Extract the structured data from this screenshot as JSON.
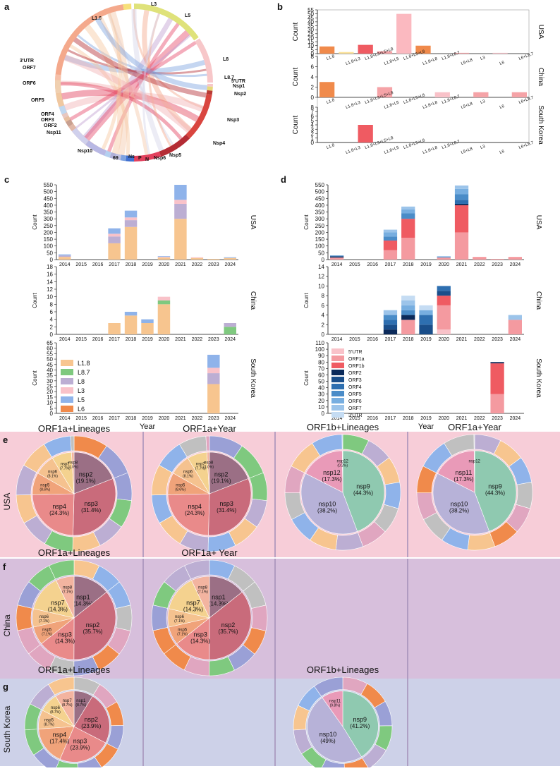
{
  "panels": {
    "a": "a",
    "b": "b",
    "c": "c",
    "d": "d",
    "e": "e",
    "f": "f",
    "g": "g"
  },
  "colors": {
    "L1.8": "#f7c58f",
    "L8.7": "#7fc97f",
    "L8": "#bcaed3",
    "L3": "#f9c2c9",
    "L5": "#8fb3ea",
    "L6": "#f08a4b",
    "bar_b": [
      "#f08a4b",
      "#fde49b",
      "#ef5b62",
      "#f5a3a7",
      "#fbb9c0",
      "#f08a4b",
      "#f9c2c9",
      "#f5a3a7",
      "#f5a3a7",
      "#f9c2c9",
      "#f5a3a7"
    ],
    "pink_bg": "#f7cdd8",
    "purple_bg": "#d7bfdc",
    "blue_bg": "#cdd1e8"
  },
  "chart_data": [
    {
      "panel": "a",
      "type": "chord",
      "segments": [
        "L1.8",
        "L3",
        "L5",
        "L8",
        "L8.7",
        "5'UTR",
        "Nsp1",
        "Nsp2",
        "Nsp3",
        "Nsp4",
        "Nsp5",
        "Nsp6",
        "N",
        "P",
        "Ns",
        "69",
        "Nsp10",
        "Nsp11",
        "ORF2",
        "ORF3",
        "ORF4",
        "ORF5",
        "ORF6",
        "ORF7",
        "3'UTR"
      ]
    },
    {
      "panel": "b",
      "type": "bar",
      "countries": [
        "USA",
        "China",
        "South Korea"
      ],
      "ylabel": "Count",
      "categories": [
        "L1.8",
        "L1.8+L3",
        "L1.8+L3+L5+L8",
        "L1.8+L5",
        "L1.8+L5+L8",
        "L1.8+L8",
        "L1.8+L8.7",
        "L5+L8",
        "L3",
        "L6",
        "L6+L8.7"
      ],
      "series": [
        {
          "name": "USA",
          "values": [
            9,
            2,
            11,
            3,
            50,
            10,
            0,
            1,
            0,
            1,
            0
          ],
          "ylim": [
            0,
            55
          ],
          "ticks": [
            0,
            5,
            10,
            15,
            20,
            25,
            30,
            35,
            40,
            45,
            50,
            55
          ]
        },
        {
          "name": "China",
          "values": [
            3,
            0,
            0,
            2,
            0,
            0,
            1,
            0,
            1,
            0,
            1
          ],
          "ylim": [
            0,
            8
          ],
          "ticks": [
            0,
            2,
            4,
            6,
            8
          ]
        },
        {
          "name": "South Korea",
          "values": [
            0,
            0,
            4,
            0,
            0,
            0,
            0,
            0,
            0,
            0,
            0
          ],
          "ylim": [
            0,
            8
          ],
          "ticks": [
            0,
            1,
            2,
            3,
            4,
            5,
            6,
            7,
            8
          ]
        }
      ]
    },
    {
      "panel": "c",
      "type": "bar",
      "stacked": true,
      "xlabel": "Year",
      "ylabel": "Count",
      "years": [
        "2014",
        "2015",
        "2016",
        "2017",
        "2018",
        "2019",
        "2020",
        "2021",
        "2022",
        "2023",
        "2024"
      ],
      "legend": [
        "L1.8",
        "L8.7",
        "L8",
        "L3",
        "L5",
        "L6"
      ],
      "rows": [
        {
          "country": "USA",
          "ylim": [
            0,
            550
          ],
          "ticks": [
            0,
            50,
            100,
            150,
            200,
            250,
            300,
            350,
            400,
            450,
            500,
            550
          ],
          "stacks": [
            {
              "L1.8": 20,
              "L8": 10,
              "L5": 8
            },
            {},
            {},
            {
              "L1.8": 120,
              "L8": 50,
              "L3": 20,
              "L5": 40
            },
            {
              "L1.8": 240,
              "L8": 50,
              "L3": 20,
              "L5": 50
            },
            {},
            {
              "L1.8": 15,
              "L3": 5,
              "L5": 5
            },
            {
              "L1.8": 300,
              "L8": 110,
              "L3": 30,
              "L5": 110
            },
            {
              "L1.8": 12,
              "L3": 5
            },
            {
              "L1.8": 5
            },
            {
              "L1.8": 12,
              "L5": 5
            }
          ]
        },
        {
          "country": "China",
          "ylim": [
            0,
            18
          ],
          "ticks": [
            0,
            2,
            4,
            6,
            8,
            10,
            12,
            14,
            16,
            18
          ],
          "stacks": [
            {},
            {},
            {},
            {
              "L1.8": 3
            },
            {
              "L1.8": 5,
              "L5": 1
            },
            {
              "L1.8": 3,
              "L5": 1
            },
            {
              "L1.8": 8,
              "L8.7": 1,
              "L3": 1
            },
            {},
            {},
            {},
            {
              "L8.7": 2,
              "L8": 1
            }
          ]
        },
        {
          "country": "South Korea",
          "ylim": [
            0,
            65
          ],
          "ticks": [
            0,
            5,
            10,
            15,
            20,
            25,
            30,
            35,
            40,
            45,
            50,
            55,
            60,
            65
          ],
          "stacks": [
            {},
            {},
            {},
            {},
            {},
            {},
            {},
            {},
            {},
            {
              "L1.8": 27,
              "L8": 10,
              "L3": 5,
              "L5": 12
            },
            {}
          ]
        }
      ]
    },
    {
      "panel": "d",
      "type": "bar",
      "stacked": true,
      "xlabel": "Year",
      "ylabel": "Count",
      "years": [
        "2014",
        "2015",
        "2016",
        "2017",
        "2018",
        "2019",
        "2020",
        "2021",
        "2022",
        "2023",
        "2024"
      ],
      "legend": [
        "5'UTR",
        "ORF1a",
        "ORF1b",
        "ORF2",
        "ORF3",
        "ORF4",
        "ORF5",
        "ORF6",
        "ORF7",
        "3'UTR"
      ],
      "rows": [
        {
          "country": "USA",
          "ylim": [
            0,
            550
          ],
          "ticks": [
            0,
            50,
            100,
            150,
            200,
            250,
            300,
            350,
            400,
            450,
            500,
            550
          ],
          "stacks": [
            {
              "ORF1a": 15,
              "ORF2": 8,
              "ORF5": 7
            },
            {},
            {},
            {
              "ORF1a": 70,
              "ORF1b": 70,
              "ORF5": 30,
              "ORF6": 30,
              "ORF7": 20
            },
            {
              "ORF1a": 160,
              "ORF1b": 140,
              "ORF5": 40,
              "ORF6": 30,
              "ORF7": 20
            },
            {},
            {
              "ORF1a": 15,
              "ORF5": 5,
              "ORF7": 5
            },
            {
              "ORF1a": 200,
              "ORF1b": 200,
              "ORF2": 10,
              "ORF4": 30,
              "ORF5": 40,
              "ORF6": 40,
              "ORF7": 25
            },
            {
              "ORF1a": 12,
              "ORF1b": 5
            },
            {
              "ORF1a": 5
            },
            {
              "ORF1a": 12,
              "ORF1b": 5
            }
          ]
        },
        {
          "country": "China",
          "ylim": [
            0,
            14
          ],
          "ticks": [
            0,
            2,
            4,
            6,
            8,
            10,
            12,
            14
          ],
          "stacks": [
            {},
            {},
            {},
            {
              "ORF2": 1,
              "ORF3": 1,
              "ORF4": 1,
              "ORF5": 1,
              "ORF7": 1
            },
            {
              "ORF1a": 3,
              "ORF2": 1,
              "ORF5": 1,
              "ORF6": 1,
              "ORF7": 1,
              "3'UTR": 1
            },
            {
              "ORF3": 2,
              "ORF4": 2,
              "ORF6": 1,
              "3'UTR": 1
            },
            {
              "5'UTR": 1,
              "ORF1a": 5,
              "ORF1b": 2,
              "ORF3": 1,
              "ORF4": 1
            },
            {},
            {},
            {},
            {
              "ORF1a": 3,
              "ORF7": 1
            }
          ]
        },
        {
          "country": "South Korea",
          "ylim": [
            0,
            110
          ],
          "ticks": [
            0,
            10,
            20,
            30,
            40,
            50,
            60,
            70,
            80,
            90,
            100,
            110
          ],
          "stacks": [
            {},
            {},
            {},
            {},
            {},
            {},
            {},
            {},
            {},
            {
              "ORF1a": 30,
              "ORF1b": 48,
              "ORF2": 2
            },
            {}
          ]
        }
      ]
    },
    {
      "panel": "e-g",
      "type": "pie",
      "rows": [
        "USA",
        "China",
        "South Korea"
      ],
      "charts": [
        {
          "country": "USA",
          "title": "ORF1a+Lineages",
          "slices": [
            {
              "label": "nsp2",
              "pct": "19.1%",
              "v": 19.1
            },
            {
              "label": "nsp3",
              "pct": "31.4%",
              "v": 31.4
            },
            {
              "label": "nsp4",
              "pct": "24.3%",
              "v": 24.3
            },
            {
              "label": "nsp5",
              "pct": "8.6%",
              "v": 8.6
            },
            {
              "label": "nsp6",
              "pct": "8.1%",
              "v": 8.1
            },
            {
              "label": "nsp7",
              "pct": "7.7%",
              "v": 7.7
            },
            {
              "label": "nsp8",
              "pct": "1.0%",
              "v": 1.0
            }
          ]
        },
        {
          "country": "USA",
          "title": "ORF1a+Year",
          "slices": [
            {
              "label": "nsp2",
              "pct": "19.1%",
              "v": 19.1
            },
            {
              "label": "nsp3",
              "pct": "31.4%",
              "v": 31.4
            },
            {
              "label": "nsp4",
              "pct": "24.3%",
              "v": 24.3
            },
            {
              "label": "nsp5",
              "pct": "8.6%",
              "v": 8.6
            },
            {
              "label": "nsp6",
              "pct": "8.1%",
              "v": 8.1
            },
            {
              "label": "nsp7",
              "pct": "7.7%",
              "v": 7.7
            },
            {
              "label": "nsp8",
              "pct": "1.0%",
              "v": 1.0
            }
          ]
        },
        {
          "country": "USA",
          "title": "ORF1b+Lineages",
          "slices": [
            {
              "label": "nsp9",
              "pct": "44.3%",
              "v": 44.3
            },
            {
              "label": "nsp10",
              "pct": "38.2%",
              "v": 38.2
            },
            {
              "label": "nsp12",
              "pct": "17.3%",
              "v": 17.3
            },
            {
              "label": "nsp12",
              "pct": "0.2%",
              "v": 0.2
            }
          ]
        },
        {
          "country": "USA",
          "title": "ORF1a+Year",
          "slices": [
            {
              "label": "nsp9",
              "pct": "44.3%",
              "v": 44.3
            },
            {
              "label": "nsp10",
              "pct": "38.2%",
              "v": 38.2
            },
            {
              "label": "nsp11",
              "pct": "17.3%",
              "v": 17.3
            },
            {
              "label": "nsp12",
              "pct": "",
              "v": 0.2
            }
          ]
        },
        {
          "country": "China",
          "title": "ORF1a+Lineages",
          "slices": [
            {
              "label": "nsp1",
              "pct": "14.3%",
              "v": 14.3
            },
            {
              "label": "nsp2",
              "pct": "35.7%",
              "v": 35.7
            },
            {
              "label": "nsp3",
              "pct": "14.3%",
              "v": 14.3
            },
            {
              "label": "nsp5",
              "pct": "7.1%",
              "v": 7.1
            },
            {
              "label": "nsp6",
              "pct": "7.1%",
              "v": 7.1
            },
            {
              "label": "nsp7",
              "pct": "14.3%",
              "v": 14.3
            },
            {
              "label": "nsp8",
              "pct": "7.1%",
              "v": 7.1
            }
          ]
        },
        {
          "country": "China",
          "title": "ORF1a+ Year",
          "slices": [
            {
              "label": "nsp1",
              "pct": "14.3%",
              "v": 14.3
            },
            {
              "label": "nsp2",
              "pct": "35.7%",
              "v": 35.7
            },
            {
              "label": "nsp3",
              "pct": "14.3%",
              "v": 14.3
            },
            {
              "label": "nsp5",
              "pct": "7.1%",
              "v": 7.1
            },
            {
              "label": "nsp6",
              "pct": "7.1%",
              "v": 7.1
            },
            {
              "label": "nsp7",
              "pct": "14.3%",
              "v": 14.3
            },
            {
              "label": "nsp8",
              "pct": "7.1%",
              "v": 7.1
            }
          ]
        },
        {
          "country": "South Korea",
          "title": "ORF1a+Lineages",
          "slices": [
            {
              "label": "nsp1",
              "pct": "8.7%",
              "v": 8.7
            },
            {
              "label": "nsp2",
              "pct": "23.9%",
              "v": 23.9
            },
            {
              "label": "nsp3",
              "pct": "23.9%",
              "v": 23.9
            },
            {
              "label": "nsp4",
              "pct": "17.4%",
              "v": 17.4
            },
            {
              "label": "nsp5",
              "pct": "8.7%",
              "v": 8.7
            },
            {
              "label": "nsp6",
              "pct": "8.7%",
              "v": 8.7
            },
            {
              "label": "nsp7",
              "pct": "8.7%",
              "v": 8.7
            }
          ]
        },
        {
          "country": "South Korea",
          "title": "ORF1b+Lineages",
          "slices": [
            {
              "label": "nsp9",
              "pct": "41.2%",
              "v": 41.2
            },
            {
              "label": "nsp10",
              "pct": "49%",
              "v": 49
            },
            {
              "label": "nsp11",
              "pct": "9.8%",
              "v": 9.8
            }
          ]
        }
      ]
    }
  ]
}
